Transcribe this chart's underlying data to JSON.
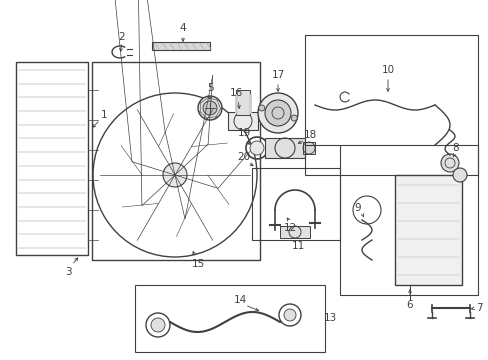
{
  "bg_color": "#ffffff",
  "line_color": "#404040",
  "lw": 0.8,
  "fig_w": 4.89,
  "fig_h": 3.6,
  "dpi": 100
}
